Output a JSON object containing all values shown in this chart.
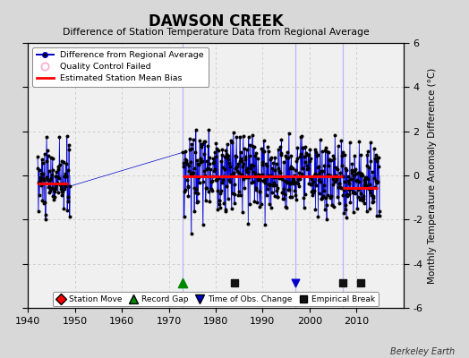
{
  "title": "DAWSON CREEK",
  "subtitle": "Difference of Station Temperature Data from Regional Average",
  "ylabel": "Monthly Temperature Anomaly Difference (°C)",
  "credit": "Berkeley Earth",
  "ylim": [
    -6,
    6
  ],
  "xlim": [
    1940,
    2020
  ],
  "xticks": [
    1940,
    1950,
    1960,
    1970,
    1980,
    1990,
    2000,
    2010
  ],
  "yticks": [
    -6,
    -4,
    -2,
    0,
    2,
    4,
    6
  ],
  "fig_bg_color": "#d8d8d8",
  "plot_bg_color": "#f0f0f0",
  "grid_color": "#c0c0c0",
  "line_color": "#0000cc",
  "vline_color": "#7777ee",
  "bias_color": "#ff0000",
  "marker_color": "#000000",
  "qc_marker_color": "#ffaacc",
  "break_vline_color": "#aaaaff",
  "early_segment": {
    "x_start": 1942.0,
    "x_end": 1948.5,
    "bias": -0.35
  },
  "mid_segment": {
    "x_start": 1973.0,
    "x_end": 2007.0,
    "bias": -0.05
  },
  "late_segment": {
    "x_start": 2007.0,
    "x_end": 2014.5,
    "bias": -0.55
  },
  "vertical_lines": [
    1973,
    1997,
    2007
  ],
  "record_gaps": [
    1973
  ],
  "obs_changes": [
    1997
  ],
  "empirical_breaks": [
    1984,
    2007,
    2011
  ],
  "station_moves": [],
  "early_seed": 10,
  "mid_seed": 20,
  "early_std": 0.85,
  "mid_std": 0.9,
  "early_mean": -0.3,
  "mid_mean": 0.1
}
